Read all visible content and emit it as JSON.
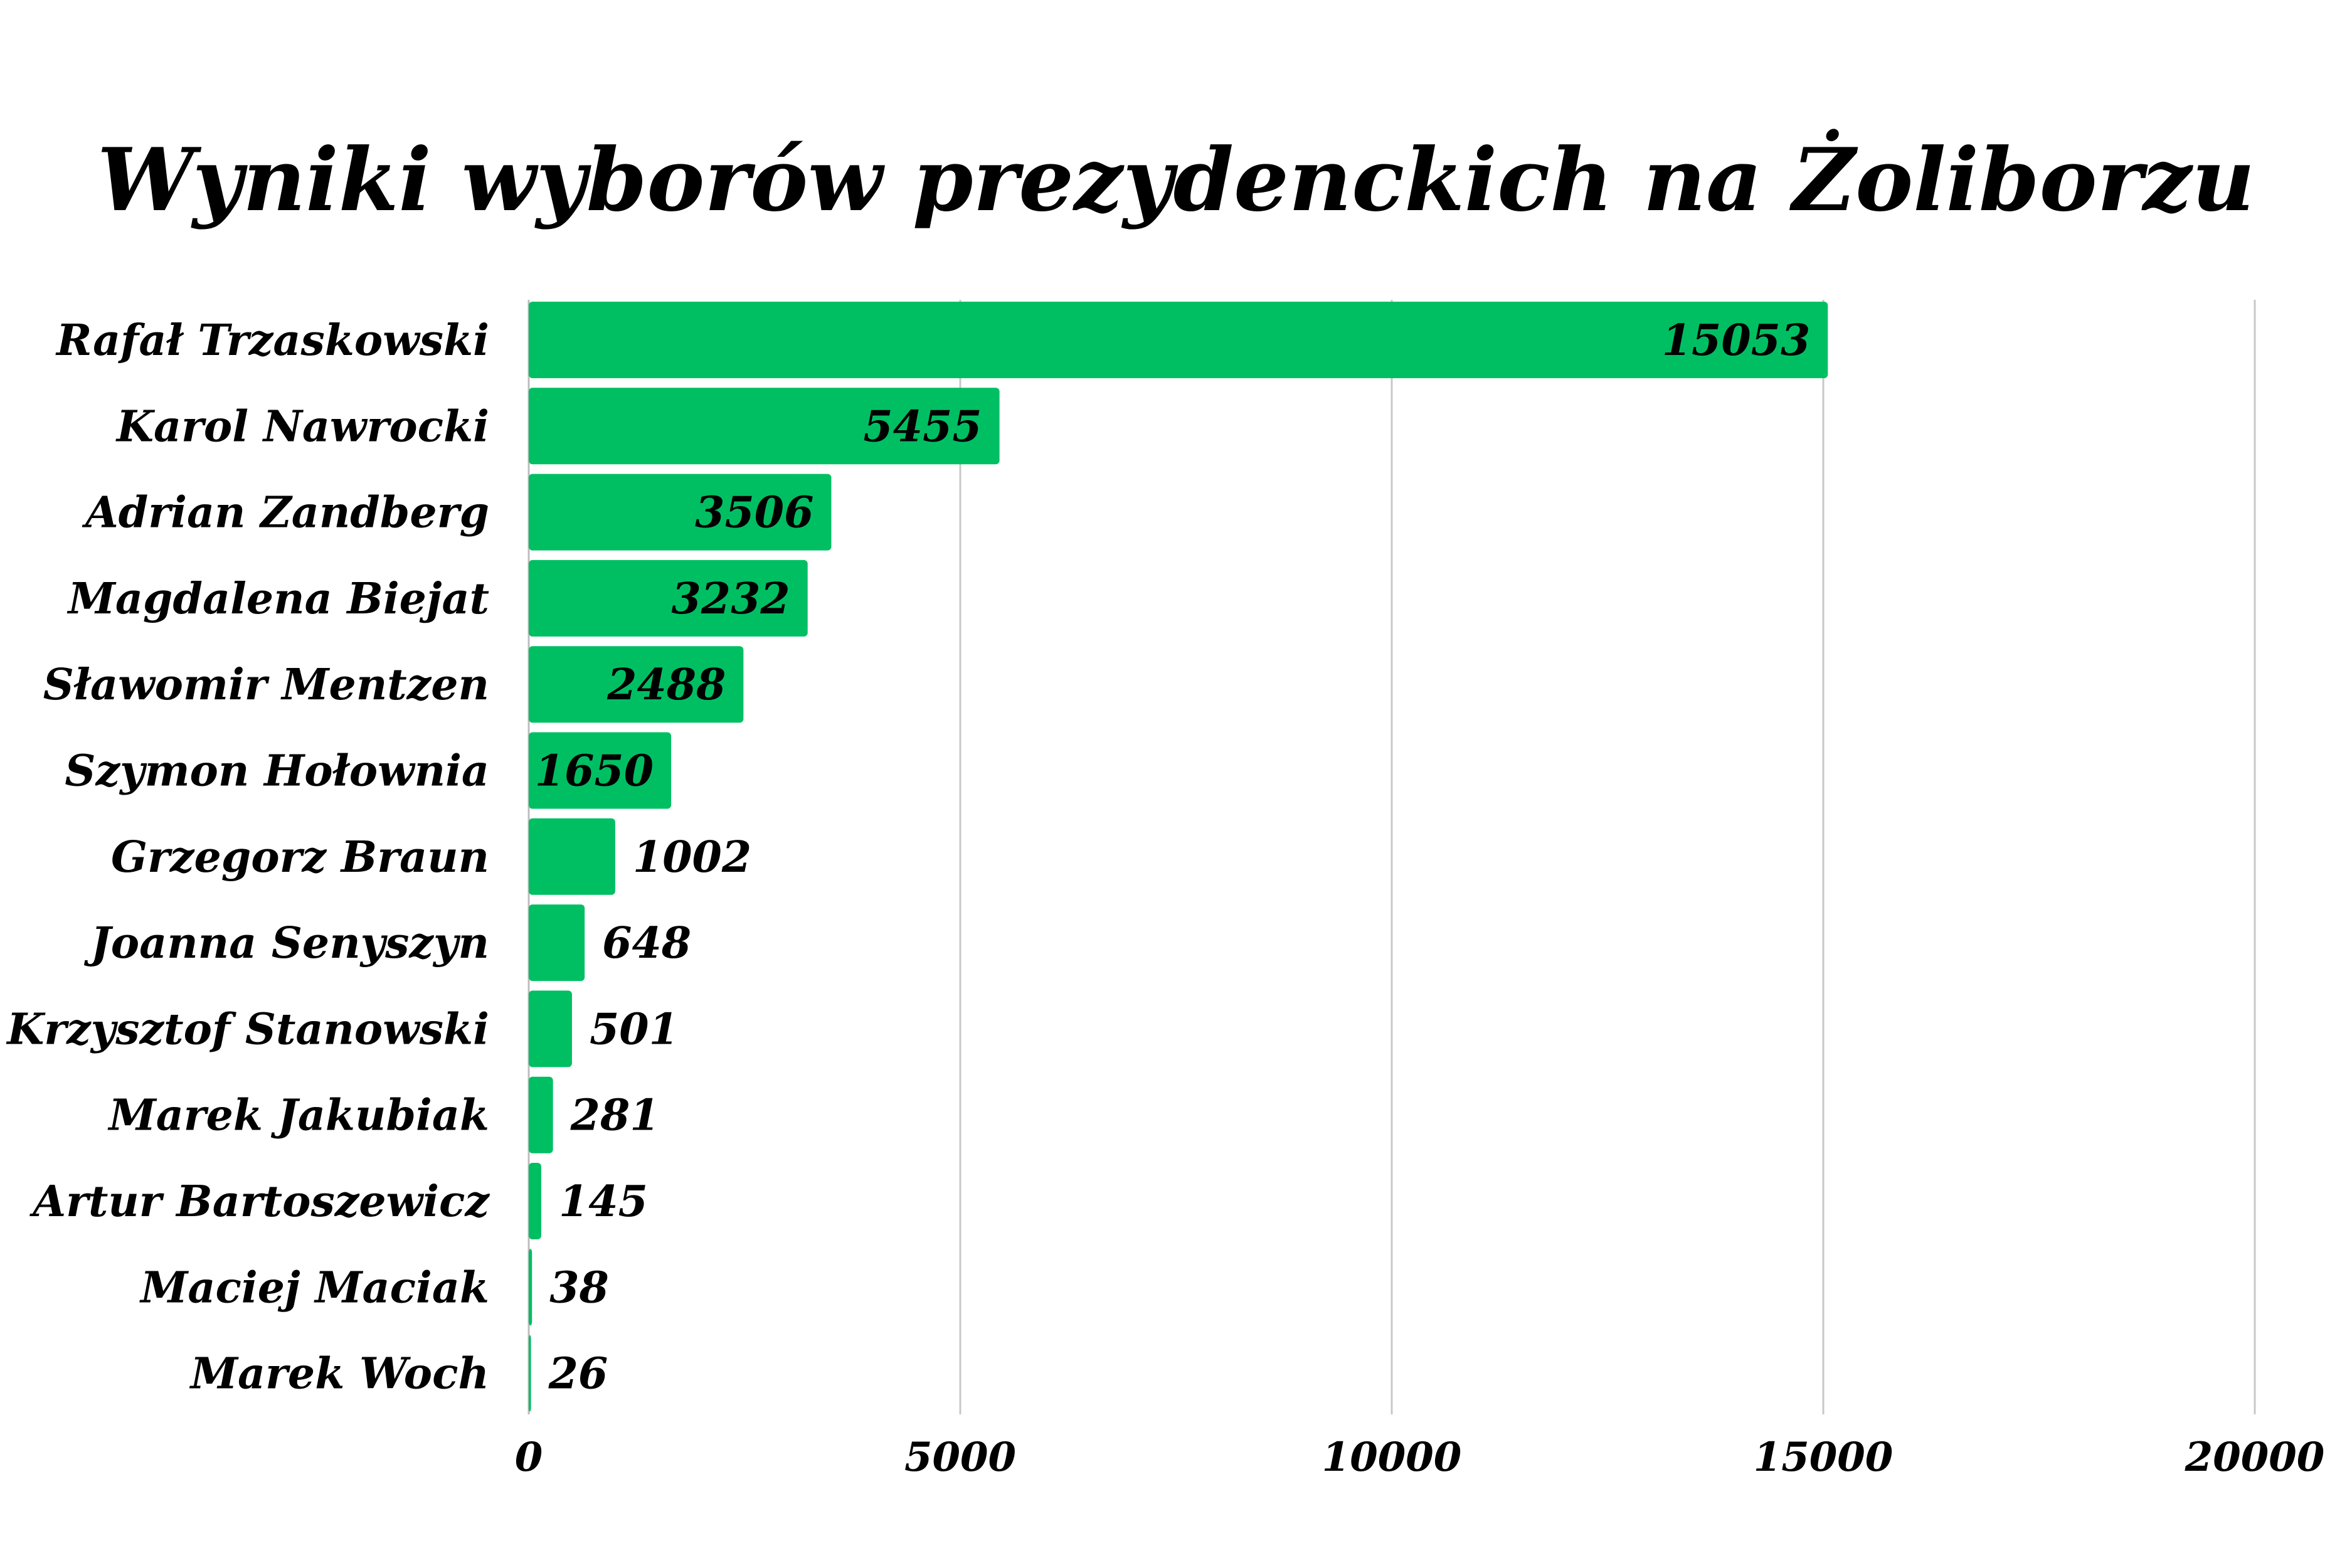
{
  "chart_data": {
    "type": "bar",
    "orientation": "horizontal",
    "title": "Wyniki wyborów prezydenckich na Żoliborzu",
    "categories": [
      "Rafał Trzaskowski",
      "Karol Nawrocki",
      "Adrian Zandberg",
      "Magdalena Biejat",
      "Sławomir Mentzen",
      "Szymon Hołownia",
      "Grzegorz Braun",
      "Joanna Senyszyn",
      "Krzysztof Stanowski",
      "Marek Jakubiak",
      "Artur Bartoszewicz",
      "Maciej Maciak",
      "Marek Woch"
    ],
    "values": [
      15053,
      5455,
      3506,
      3232,
      2488,
      1650,
      1002,
      648,
      501,
      281,
      145,
      38,
      26
    ],
    "value_labels": [
      "15053",
      "5455",
      "3506",
      "3232",
      "2488",
      "1650",
      "1002",
      "648",
      "501",
      "281",
      "145",
      "38",
      "26"
    ],
    "xlim": [
      0,
      20000
    ],
    "x_ticks": [
      0,
      5000,
      10000,
      15000,
      20000
    ],
    "x_tick_labels": [
      "0",
      "5000",
      "10000",
      "15000",
      "20000"
    ],
    "xlabel": "",
    "ylabel": "",
    "grid": "vertical",
    "legend": "none",
    "colors": {
      "bar": "#00bf63",
      "grid": "#c8c8c8",
      "text": "#000000",
      "background": "#ffffff"
    }
  }
}
